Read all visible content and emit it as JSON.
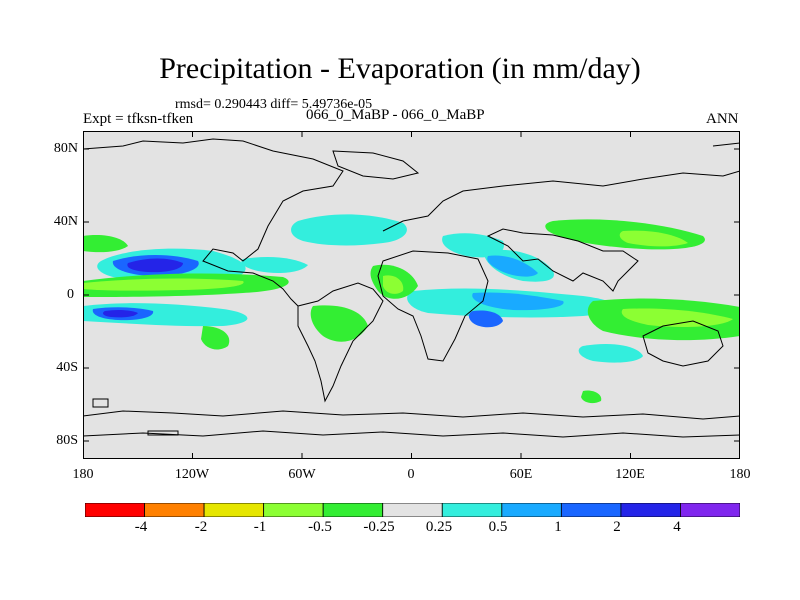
{
  "header": {
    "title": "Precipitation - Evaporation (in mm/day)",
    "stats": "rmsd= 0.290443 diff= 5.49736e-05",
    "expt": "Expt = tfksn-tfken",
    "cases": "066_0_MaBP - 066_0_MaBP",
    "season": "ANN"
  },
  "axes": {
    "lat_ticks": [
      "80N",
      "40N",
      "0",
      "40S",
      "80S"
    ],
    "lon_ticks": [
      "180",
      "120W",
      "60W",
      "0",
      "60E",
      "120E",
      "180"
    ]
  },
  "colorbar": {
    "colors": [
      "#ff0000",
      "#ff8000",
      "#e6e600",
      "#8cff33",
      "#33ee33",
      "#e3e3e3",
      "#33eedd",
      "#19aaff",
      "#1a66ff",
      "#2424e8",
      "#8026ee"
    ],
    "labels": [
      "-4",
      "-2",
      "-1",
      "-0.5",
      "-0.25",
      "0.25",
      "0.5",
      "1",
      "2",
      "4"
    ]
  },
  "colors": {
    "land_line": "#000000",
    "background": "#e3e3e3"
  }
}
